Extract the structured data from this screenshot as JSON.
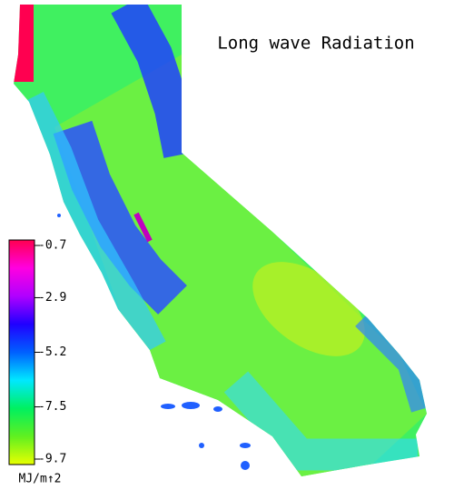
{
  "title": "Long wave Radiation",
  "colorbar": {
    "range": [
      -9.7,
      -0.7
    ],
    "ticks": [
      -0.7,
      -2.9,
      -5.2,
      -7.5,
      -9.7
    ],
    "unit": "MJ/m↑2",
    "colors": [
      "#e8ff00",
      "#60f020",
      "#00f060",
      "#00e8ff",
      "#0060ff",
      "#2000ff",
      "#b000ff",
      "#ff00e0",
      "#ff0050"
    ]
  }
}
